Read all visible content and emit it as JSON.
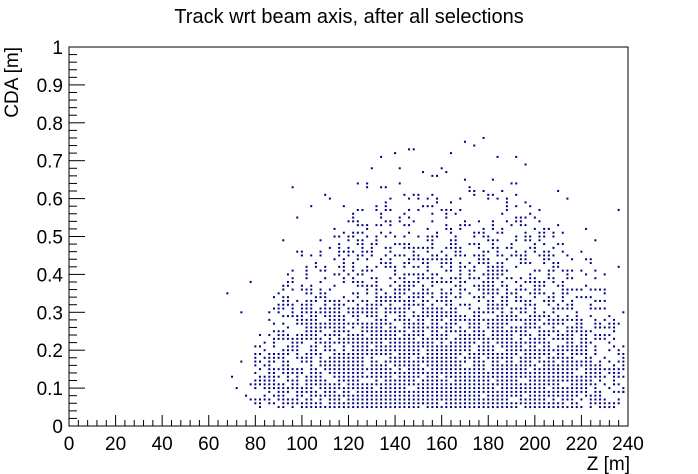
{
  "chart_data": {
    "type": "scatter",
    "title": "Track wrt beam axis, after all selections",
    "xlabel": "Z [m]",
    "ylabel": "CDA [m]",
    "xlim": [
      0,
      240
    ],
    "ylim": [
      0,
      1
    ],
    "x_ticks": [
      "0",
      "20",
      "40",
      "60",
      "80",
      "100",
      "120",
      "140",
      "160",
      "180",
      "200",
      "220",
      "240"
    ],
    "y_ticks": [
      "0",
      "0.1",
      "0.2",
      "0.3",
      "0.4",
      "0.5",
      "0.6",
      "0.7",
      "0.8",
      "0.9",
      "1"
    ],
    "marker_color": "#000080",
    "grid": false,
    "legend": "none",
    "binning": {
      "x_bin": 2,
      "y_bin": 0.01
    },
    "density_rows": [
      {
        "y": 0.06,
        "xmin": 80,
        "xmax": 236,
        "density": 0.95
      },
      {
        "y": 0.08,
        "xmin": 76,
        "xmax": 238,
        "density": 0.95
      },
      {
        "y": 0.1,
        "xmin": 76,
        "xmax": 238,
        "density": 0.95
      },
      {
        "y": 0.12,
        "xmin": 78,
        "xmax": 238,
        "density": 0.9
      },
      {
        "y": 0.15,
        "xmin": 80,
        "xmax": 238,
        "density": 0.9
      },
      {
        "y": 0.18,
        "xmin": 80,
        "xmax": 238,
        "density": 0.85
      },
      {
        "y": 0.2,
        "xmin": 80,
        "xmax": 238,
        "density": 0.85
      },
      {
        "y": 0.23,
        "xmin": 82,
        "xmax": 238,
        "density": 0.85
      },
      {
        "y": 0.26,
        "xmin": 84,
        "xmax": 236,
        "density": 0.8
      },
      {
        "y": 0.28,
        "xmin": 86,
        "xmax": 236,
        "density": 0.8
      },
      {
        "y": 0.3,
        "xmin": 86,
        "xmax": 234,
        "density": 0.75
      },
      {
        "y": 0.33,
        "xmin": 88,
        "xmax": 232,
        "density": 0.7
      },
      {
        "y": 0.36,
        "xmin": 90,
        "xmax": 230,
        "density": 0.65
      },
      {
        "y": 0.38,
        "xmin": 92,
        "xmax": 228,
        "density": 0.6
      },
      {
        "y": 0.4,
        "xmin": 94,
        "xmax": 226,
        "density": 0.55
      },
      {
        "y": 0.43,
        "xmin": 96,
        "xmax": 224,
        "density": 0.5
      },
      {
        "y": 0.46,
        "xmin": 98,
        "xmax": 220,
        "density": 0.45
      },
      {
        "y": 0.48,
        "xmin": 102,
        "xmax": 218,
        "density": 0.42
      },
      {
        "y": 0.5,
        "xmin": 106,
        "xmax": 214,
        "density": 0.38
      },
      {
        "y": 0.53,
        "xmin": 110,
        "xmax": 210,
        "density": 0.34
      },
      {
        "y": 0.56,
        "xmin": 114,
        "xmax": 206,
        "density": 0.28
      },
      {
        "y": 0.58,
        "xmin": 118,
        "xmax": 202,
        "density": 0.22
      },
      {
        "y": 0.6,
        "xmin": 122,
        "xmax": 198,
        "density": 0.16
      },
      {
        "y": 0.63,
        "xmin": 128,
        "xmax": 194,
        "density": 0.1
      },
      {
        "y": 0.66,
        "xmin": 134,
        "xmax": 188,
        "density": 0.06
      },
      {
        "y": 0.68,
        "xmin": 140,
        "xmax": 184,
        "density": 0.04
      },
      {
        "y": 0.7,
        "xmin": 146,
        "xmax": 178,
        "density": 0.02
      }
    ],
    "outliers": [
      {
        "x": 68,
        "y": 0.35
      },
      {
        "x": 70,
        "y": 0.13
      },
      {
        "x": 72,
        "y": 0.1
      },
      {
        "x": 74,
        "y": 0.3
      },
      {
        "x": 74,
        "y": 0.17
      },
      {
        "x": 78,
        "y": 0.38
      },
      {
        "x": 92,
        "y": 0.49
      },
      {
        "x": 96,
        "y": 0.63
      },
      {
        "x": 98,
        "y": 0.55
      },
      {
        "x": 100,
        "y": 0.46
      },
      {
        "x": 104,
        "y": 0.58
      },
      {
        "x": 110,
        "y": 0.61
      },
      {
        "x": 112,
        "y": 0.6
      },
      {
        "x": 124,
        "y": 0.64
      },
      {
        "x": 130,
        "y": 0.68
      },
      {
        "x": 134,
        "y": 0.71
      },
      {
        "x": 140,
        "y": 0.72
      },
      {
        "x": 146,
        "y": 0.73
      },
      {
        "x": 148,
        "y": 0.73
      },
      {
        "x": 158,
        "y": 0.66
      },
      {
        "x": 164,
        "y": 0.72
      },
      {
        "x": 170,
        "y": 0.75
      },
      {
        "x": 174,
        "y": 0.74
      },
      {
        "x": 178,
        "y": 0.76
      },
      {
        "x": 184,
        "y": 0.71
      },
      {
        "x": 192,
        "y": 0.71
      },
      {
        "x": 196,
        "y": 0.69
      },
      {
        "x": 210,
        "y": 0.62
      },
      {
        "x": 214,
        "y": 0.6
      },
      {
        "x": 222,
        "y": 0.52
      },
      {
        "x": 226,
        "y": 0.49
      },
      {
        "x": 230,
        "y": 0.4
      },
      {
        "x": 236,
        "y": 0.57
      },
      {
        "x": 236,
        "y": 0.42
      },
      {
        "x": 238,
        "y": 0.3
      },
      {
        "x": 238,
        "y": 0.15
      },
      {
        "x": 238,
        "y": 0.09
      },
      {
        "x": 232,
        "y": 0.06
      }
    ]
  }
}
